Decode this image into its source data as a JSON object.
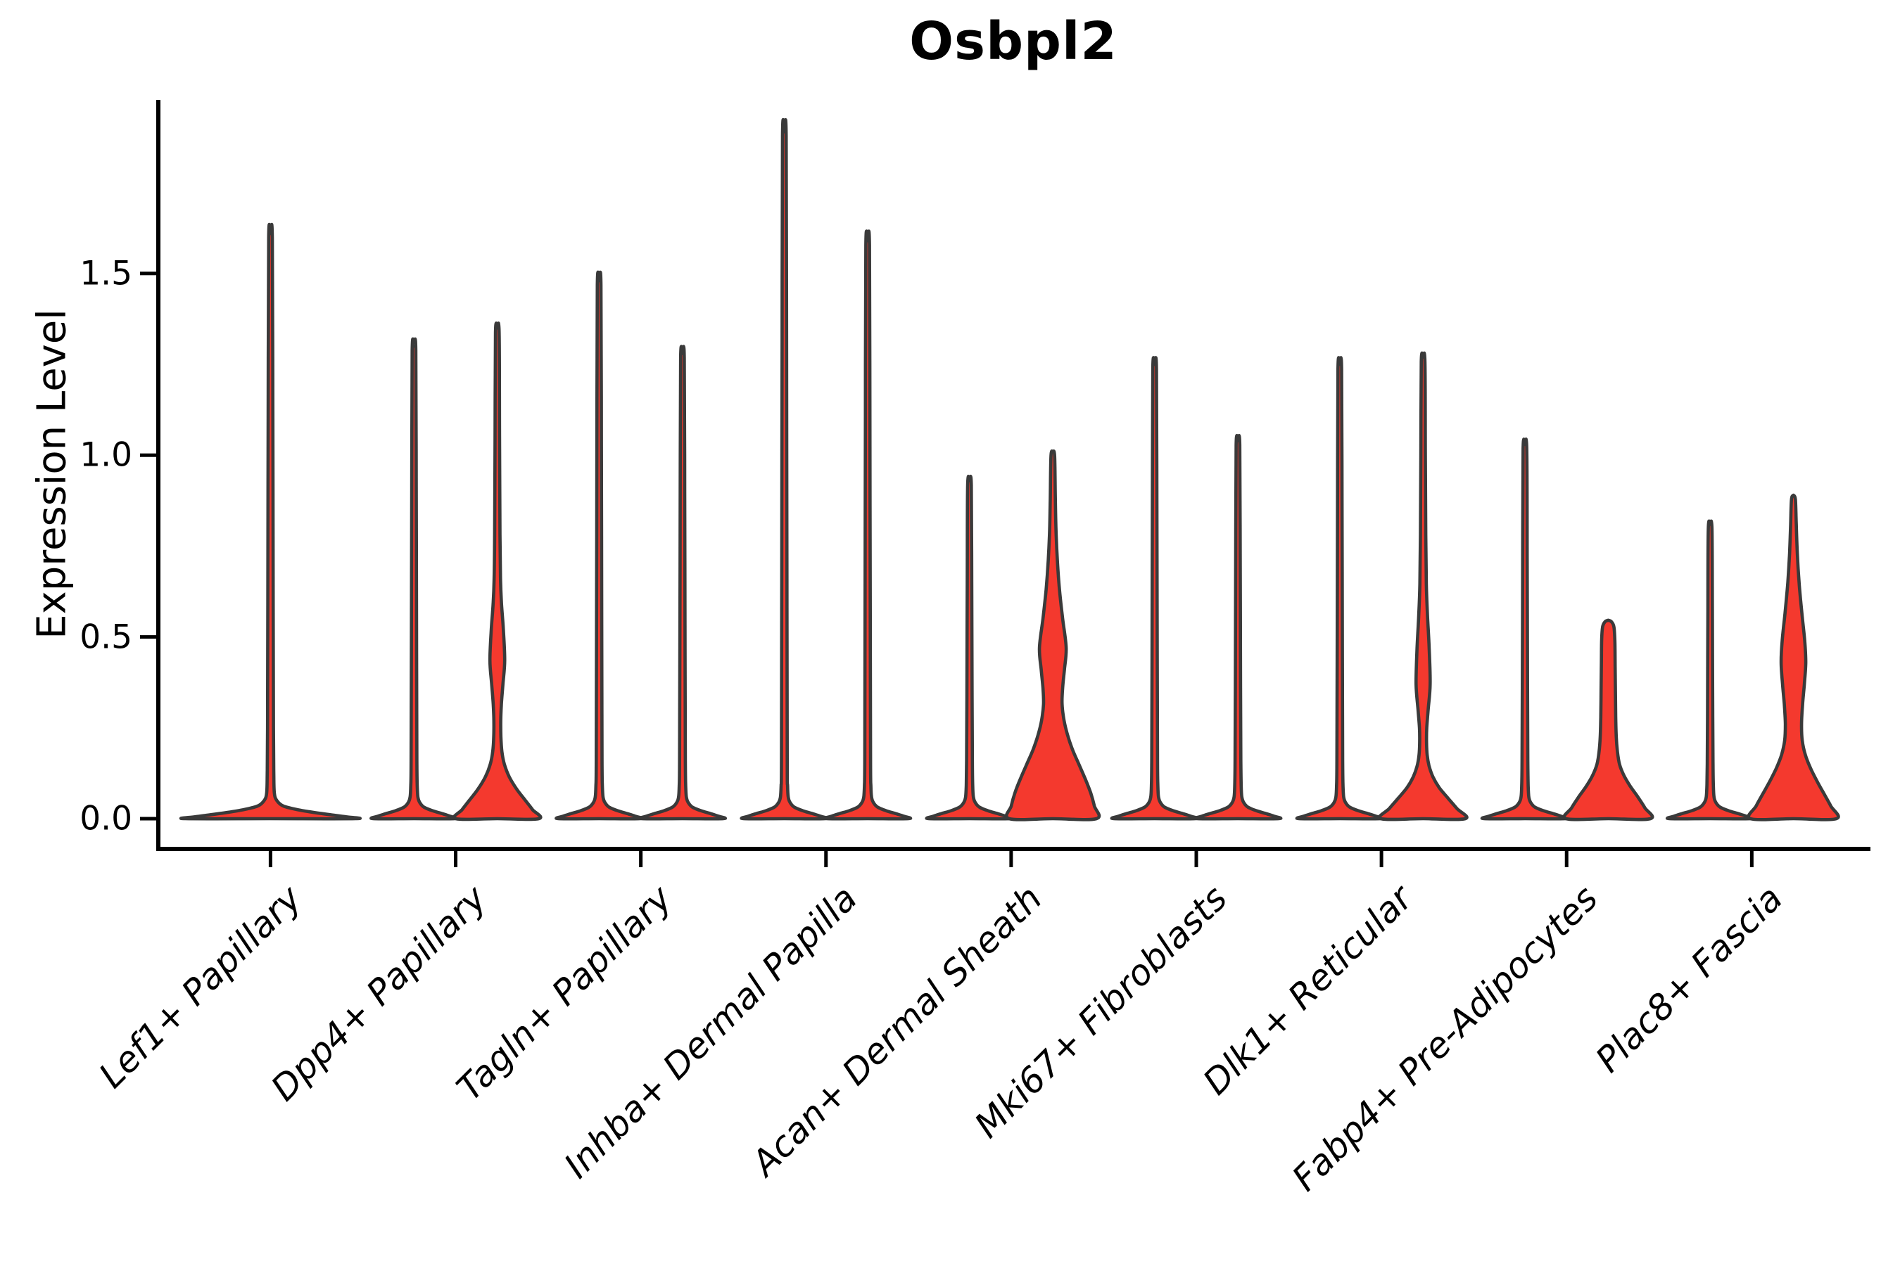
{
  "title": "Osbpl2",
  "axes": {
    "ylabel": "Expression Level",
    "ytick_labels": [
      "0.0",
      "0.5",
      "1.0",
      "1.5"
    ]
  },
  "chart_data": {
    "type": "violin",
    "title": "Osbpl2",
    "xlabel": "",
    "ylabel": "Expression Level",
    "yticks": [
      0.0,
      0.5,
      1.0,
      1.5
    ],
    "ylim": [
      -0.06,
      1.98
    ],
    "grid": false,
    "legend": null,
    "colors": {
      "violin_fill": "#f4392e",
      "violin_stroke": "#3a3a3a",
      "axis": "#000000",
      "text": "#000000"
    },
    "categories": [
      "Lef1+ Papillary",
      "Dpp4+ Papillary",
      "Tagln+ Papillary",
      "Inhba+ Dermal Papilla",
      "Acan+ Dermal Sheath",
      "Mki67+ Fibroblasts",
      "Dlk1+ Reticular",
      "Fabp4+ Pre-Adipocytes",
      "Plac8+ Fascia"
    ],
    "violins": [
      {
        "category_index": 0,
        "category": "Lef1+ Papillary",
        "position": "center",
        "max_expression": 1.61,
        "visible_red_body": false,
        "profile": [
          [
            1.61,
            0
          ],
          [
            1.598,
            2.6
          ],
          [
            1.15,
            3.3
          ],
          [
            0.6,
            3.8
          ],
          [
            0.25,
            4.2
          ],
          [
            0.12,
            4.7
          ],
          [
            0.07,
            5.5
          ],
          [
            0.05,
            9
          ],
          [
            0.035,
            18
          ],
          [
            0.025,
            38
          ],
          [
            0.017,
            62
          ],
          [
            0.01,
            88
          ],
          [
            0.005,
            108
          ],
          [
            0,
            121
          ]
        ]
      },
      {
        "category_index": 1,
        "category": "Dpp4+ Papillary",
        "position": "left",
        "max_expression": 1.3,
        "visible_red_body": false,
        "profile": [
          [
            1.3,
            0
          ],
          [
            1.288,
            2.6
          ],
          [
            0.91,
            3.2
          ],
          [
            0.455,
            3.7
          ],
          [
            0.16,
            4.1
          ],
          [
            0.09,
            4.6
          ],
          [
            0.06,
            5.5
          ],
          [
            0.045,
            8
          ],
          [
            0.032,
            14
          ],
          [
            0.022,
            26
          ],
          [
            0.014,
            40
          ],
          [
            0.007,
            51
          ],
          [
            0,
            58
          ]
        ]
      },
      {
        "category_index": 1,
        "category": "Dpp4+ Papillary",
        "position": "right",
        "max_expression": 1.35,
        "visible_red_body": true,
        "profile": [
          [
            1.35,
            0
          ],
          [
            1.338,
            2.6
          ],
          [
            1.05,
            3.2
          ],
          [
            0.78,
            3.8
          ],
          [
            0.655,
            4.6
          ],
          [
            0.59,
            6
          ],
          [
            0.52,
            8.6
          ],
          [
            0.435,
            10.5
          ],
          [
            0.37,
            8
          ],
          [
            0.315,
            5.8
          ],
          [
            0.27,
            4.9
          ],
          [
            0.225,
            5.1
          ],
          [
            0.185,
            6.5
          ],
          [
            0.15,
            10
          ],
          [
            0.115,
            17
          ],
          [
            0.08,
            28
          ],
          [
            0.05,
            40
          ],
          [
            0.025,
            50
          ],
          [
            0,
            59
          ]
        ]
      },
      {
        "category_index": 2,
        "category": "Tagln+ Papillary",
        "position": "left",
        "max_expression": 1.48,
        "visible_red_body": false,
        "profile": [
          [
            1.48,
            0
          ],
          [
            1.468,
            2.6
          ],
          [
            1.04,
            3.2
          ],
          [
            0.52,
            3.7
          ],
          [
            0.16,
            4.1
          ],
          [
            0.09,
            4.6
          ],
          [
            0.06,
            5.5
          ],
          [
            0.045,
            8
          ],
          [
            0.032,
            14
          ],
          [
            0.022,
            26
          ],
          [
            0.014,
            40
          ],
          [
            0.007,
            51
          ],
          [
            0,
            58
          ]
        ]
      },
      {
        "category_index": 2,
        "category": "Tagln+ Papillary",
        "position": "right",
        "max_expression": 1.28,
        "visible_red_body": false,
        "profile": [
          [
            1.28,
            0
          ],
          [
            1.268,
            2.6
          ],
          [
            0.9,
            3.2
          ],
          [
            0.45,
            3.7
          ],
          [
            0.16,
            4.1
          ],
          [
            0.09,
            4.6
          ],
          [
            0.06,
            5.5
          ],
          [
            0.045,
            8
          ],
          [
            0.032,
            14
          ],
          [
            0.022,
            26
          ],
          [
            0.014,
            40
          ],
          [
            0.007,
            51
          ],
          [
            0,
            58
          ]
        ]
      },
      {
        "category_index": 3,
        "category": "Inhba+ Dermal Papilla",
        "position": "left",
        "max_expression": 1.89,
        "visible_red_body": false,
        "profile": [
          [
            1.89,
            0
          ],
          [
            1.878,
            2.6
          ],
          [
            1.32,
            3.2
          ],
          [
            0.66,
            3.7
          ],
          [
            0.16,
            4.1
          ],
          [
            0.09,
            4.6
          ],
          [
            0.06,
            5.5
          ],
          [
            0.045,
            8
          ],
          [
            0.032,
            14
          ],
          [
            0.022,
            26
          ],
          [
            0.014,
            40
          ],
          [
            0.007,
            51
          ],
          [
            0,
            58
          ]
        ]
      },
      {
        "category_index": 3,
        "category": "Inhba+ Dermal Papilla",
        "position": "right",
        "max_expression": 1.59,
        "visible_red_body": false,
        "profile": [
          [
            1.59,
            0
          ],
          [
            1.578,
            2.6
          ],
          [
            1.11,
            3.2
          ],
          [
            0.56,
            3.7
          ],
          [
            0.16,
            4.1
          ],
          [
            0.09,
            4.6
          ],
          [
            0.06,
            5.5
          ],
          [
            0.045,
            8
          ],
          [
            0.032,
            14
          ],
          [
            0.022,
            26
          ],
          [
            0.014,
            40
          ],
          [
            0.007,
            51
          ],
          [
            0,
            58
          ]
        ]
      },
      {
        "category_index": 4,
        "category": "Acan+ Dermal Sheath",
        "position": "left",
        "max_expression": 0.93,
        "visible_red_body": false,
        "profile": [
          [
            0.93,
            0
          ],
          [
            0.918,
            2.6
          ],
          [
            0.65,
            3.2
          ],
          [
            0.33,
            3.7
          ],
          [
            0.16,
            4.1
          ],
          [
            0.09,
            4.6
          ],
          [
            0.06,
            5.5
          ],
          [
            0.045,
            8
          ],
          [
            0.032,
            14
          ],
          [
            0.022,
            26
          ],
          [
            0.014,
            40
          ],
          [
            0.007,
            51
          ],
          [
            0,
            58
          ]
        ]
      },
      {
        "category_index": 4,
        "category": "Acan+ Dermal Sheath",
        "position": "right",
        "max_expression": 1.01,
        "visible_red_body": true,
        "profile": [
          [
            1.01,
            0
          ],
          [
            0.998,
            2.6
          ],
          [
            0.88,
            3.6
          ],
          [
            0.79,
            4.6
          ],
          [
            0.71,
            6.5
          ],
          [
            0.63,
            9.5
          ],
          [
            0.55,
            14
          ],
          [
            0.47,
            19
          ],
          [
            0.41,
            16.5
          ],
          [
            0.36,
            14
          ],
          [
            0.315,
            13.2
          ],
          [
            0.27,
            16
          ],
          [
            0.23,
            21
          ],
          [
            0.19,
            28
          ],
          [
            0.15,
            37
          ],
          [
            0.11,
            46
          ],
          [
            0.07,
            54
          ],
          [
            0.035,
            59
          ],
          [
            0,
            62
          ]
        ]
      },
      {
        "category_index": 5,
        "category": "Mki67+ Fibroblasts",
        "position": "left",
        "max_expression": 1.25,
        "visible_red_body": false,
        "profile": [
          [
            1.25,
            0
          ],
          [
            1.238,
            2.6
          ],
          [
            0.88,
            3.2
          ],
          [
            0.44,
            3.7
          ],
          [
            0.16,
            4.1
          ],
          [
            0.09,
            4.6
          ],
          [
            0.06,
            5.5
          ],
          [
            0.045,
            8
          ],
          [
            0.032,
            14
          ],
          [
            0.022,
            26
          ],
          [
            0.014,
            40
          ],
          [
            0.007,
            51
          ],
          [
            0,
            58
          ]
        ]
      },
      {
        "category_index": 5,
        "category": "Mki67+ Fibroblasts",
        "position": "right",
        "max_expression": 1.04,
        "visible_red_body": false,
        "profile": [
          [
            1.04,
            0
          ],
          [
            1.028,
            2.6
          ],
          [
            0.73,
            3.2
          ],
          [
            0.36,
            3.7
          ],
          [
            0.16,
            4.1
          ],
          [
            0.09,
            4.6
          ],
          [
            0.06,
            5.5
          ],
          [
            0.045,
            8
          ],
          [
            0.032,
            14
          ],
          [
            0.022,
            26
          ],
          [
            0.014,
            40
          ],
          [
            0.007,
            51
          ],
          [
            0,
            58
          ]
        ]
      },
      {
        "category_index": 6,
        "category": "Dlk1+ Reticular",
        "position": "left",
        "max_expression": 1.25,
        "visible_red_body": false,
        "profile": [
          [
            1.25,
            0
          ],
          [
            1.238,
            2.6
          ],
          [
            0.88,
            3.2
          ],
          [
            0.44,
            3.7
          ],
          [
            0.16,
            4.1
          ],
          [
            0.09,
            4.6
          ],
          [
            0.06,
            5.5
          ],
          [
            0.045,
            8
          ],
          [
            0.032,
            14
          ],
          [
            0.022,
            26
          ],
          [
            0.014,
            40
          ],
          [
            0.007,
            51
          ],
          [
            0,
            58
          ]
        ]
      },
      {
        "category_index": 6,
        "category": "Dlk1+ Reticular",
        "position": "right",
        "max_expression": 1.27,
        "visible_red_body": true,
        "profile": [
          [
            1.27,
            0
          ],
          [
            1.258,
            2.6
          ],
          [
            1.0,
            3.2
          ],
          [
            0.78,
            3.8
          ],
          [
            0.645,
            4.6
          ],
          [
            0.56,
            6.2
          ],
          [
            0.47,
            8.6
          ],
          [
            0.37,
            10
          ],
          [
            0.3,
            7.2
          ],
          [
            0.25,
            5.2
          ],
          [
            0.21,
            4.9
          ],
          [
            0.175,
            5.8
          ],
          [
            0.145,
            8.5
          ],
          [
            0.115,
            14
          ],
          [
            0.085,
            23
          ],
          [
            0.055,
            36
          ],
          [
            0.028,
            48
          ],
          [
            0,
            60
          ]
        ]
      },
      {
        "category_index": 7,
        "category": "Fabp4+ Pre-Adipocytes",
        "position": "left",
        "max_expression": 1.03,
        "visible_red_body": false,
        "profile": [
          [
            1.03,
            0
          ],
          [
            1.018,
            2.6
          ],
          [
            0.72,
            3.2
          ],
          [
            0.36,
            3.7
          ],
          [
            0.16,
            4.1
          ],
          [
            0.09,
            4.6
          ],
          [
            0.06,
            5.5
          ],
          [
            0.045,
            8
          ],
          [
            0.032,
            14
          ],
          [
            0.022,
            26
          ],
          [
            0.014,
            40
          ],
          [
            0.007,
            51
          ],
          [
            0,
            58
          ]
        ]
      },
      {
        "category_index": 7,
        "category": "Fabp4+ Pre-Adipocytes",
        "position": "right",
        "max_expression": 0.55,
        "visible_red_body": true,
        "profile": [
          [
            0.546,
            0
          ],
          [
            0.542,
            4.5
          ],
          [
            0.528,
            8
          ],
          [
            0.49,
            9.4
          ],
          [
            0.42,
            9.8
          ],
          [
            0.35,
            10.2
          ],
          [
            0.28,
            10.6
          ],
          [
            0.225,
            11.4
          ],
          [
            0.185,
            13
          ],
          [
            0.15,
            16
          ],
          [
            0.12,
            22
          ],
          [
            0.09,
            31
          ],
          [
            0.06,
            42
          ],
          [
            0.03,
            52
          ],
          [
            0,
            60
          ]
        ]
      },
      {
        "category_index": 8,
        "category": "Plac8+ Fascia",
        "position": "left",
        "max_expression": 0.81,
        "visible_red_body": false,
        "profile": [
          [
            0.81,
            0
          ],
          [
            0.798,
            2.6
          ],
          [
            0.57,
            3.2
          ],
          [
            0.28,
            3.7
          ],
          [
            0.15,
            4.1
          ],
          [
            0.09,
            4.6
          ],
          [
            0.06,
            5.5
          ],
          [
            0.045,
            8
          ],
          [
            0.032,
            14
          ],
          [
            0.022,
            26
          ],
          [
            0.014,
            40
          ],
          [
            0.007,
            51
          ],
          [
            0,
            58
          ]
        ]
      },
      {
        "category_index": 8,
        "category": "Plac8+ Fascia",
        "position": "right",
        "max_expression": 0.89,
        "visible_red_body": true,
        "profile": [
          [
            0.89,
            0
          ],
          [
            0.878,
            2.8
          ],
          [
            0.81,
            4
          ],
          [
            0.73,
            5.5
          ],
          [
            0.65,
            8
          ],
          [
            0.565,
            12
          ],
          [
            0.49,
            16
          ],
          [
            0.43,
            17.5
          ],
          [
            0.37,
            15.5
          ],
          [
            0.315,
            13
          ],
          [
            0.26,
            11.5
          ],
          [
            0.215,
            12.5
          ],
          [
            0.175,
            17
          ],
          [
            0.14,
            24
          ],
          [
            0.105,
            33
          ],
          [
            0.07,
            43
          ],
          [
            0.035,
            53
          ],
          [
            0,
            61
          ]
        ]
      }
    ]
  }
}
